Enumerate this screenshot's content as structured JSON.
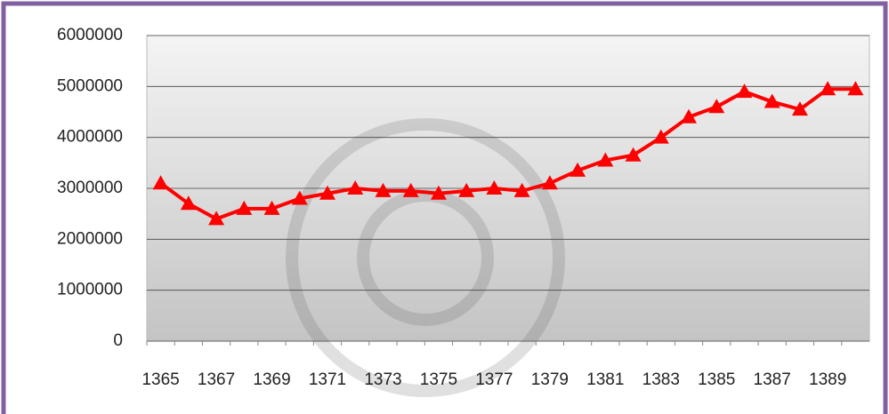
{
  "chart_data": {
    "type": "line",
    "categories": [
      "1365",
      null,
      "1367",
      null,
      "1369",
      null,
      "1371",
      null,
      "1373",
      null,
      "1375",
      null,
      "1377",
      null,
      "1379",
      null,
      "1381",
      null,
      "1383",
      null,
      "1385",
      null,
      "1387",
      null,
      "1389",
      null
    ],
    "series": [
      {
        "color": "#ff0000",
        "values": [
          3100000,
          2700000,
          2400000,
          2600000,
          2600000,
          2800000,
          2900000,
          3000000,
          2950000,
          2950000,
          2900000,
          2950000,
          3000000,
          2950000,
          3100000,
          3350000,
          3550000,
          3650000,
          4000000,
          4400000,
          4600000,
          4900000,
          4700000,
          4550000,
          4950000,
          4950000
        ]
      }
    ],
    "ylim": [
      0,
      6000000
    ],
    "yticks": [
      0,
      1000000,
      2000000,
      3000000,
      4000000,
      5000000,
      6000000
    ],
    "grid": true
  }
}
